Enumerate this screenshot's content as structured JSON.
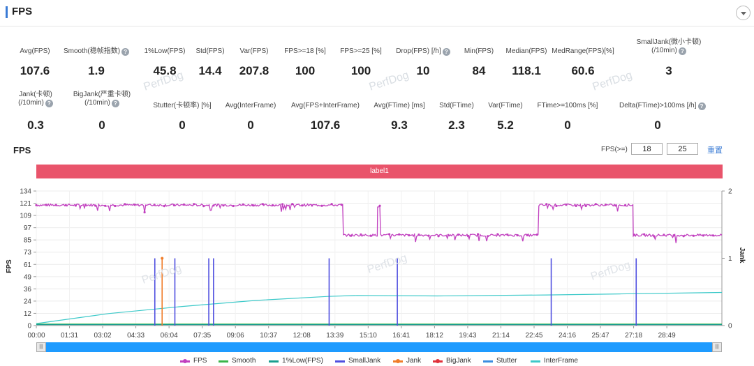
{
  "header": {
    "title": "FPS"
  },
  "stats": [
    {
      "label": "Avg(FPS)",
      "value": "107.6",
      "help": false
    },
    {
      "label": "Smooth(稳帧指数)",
      "value": "1.9",
      "help": true
    },
    {
      "label": "1%Low(FPS)",
      "value": "45.8",
      "help": false
    },
    {
      "label": "Std(FPS)",
      "value": "14.4",
      "help": false
    },
    {
      "label": "Var(FPS)",
      "value": "207.8",
      "help": false
    },
    {
      "label": "FPS>=18 [%]",
      "value": "100",
      "help": false
    },
    {
      "label": "FPS>=25 [%]",
      "value": "100",
      "help": false
    },
    {
      "label": "Drop(FPS) [/h]",
      "value": "10",
      "help": true
    },
    {
      "label": "Min(FPS)",
      "value": "84",
      "help": false
    },
    {
      "label": "Median(FPS)",
      "value": "118.1",
      "help": false
    },
    {
      "label": "MedRange(FPS)[%]",
      "value": "60.6",
      "help": false
    },
    {
      "label": "SmallJank(微小卡顿)\n(/10min)",
      "value": "3",
      "help": true
    },
    {
      "label": "Jank(卡顿)\n(/10min)",
      "value": "0.3",
      "help": true
    },
    {
      "label": "BigJank(严重卡顿)\n(/10min)",
      "value": "0",
      "help": true
    },
    {
      "label": "Stutter(卡顿率) [%]",
      "value": "0",
      "help": false
    },
    {
      "label": "Avg(InterFrame)",
      "value": "0",
      "help": false
    },
    {
      "label": "Avg(FPS+InterFrame)",
      "value": "107.6",
      "help": false
    },
    {
      "label": "Avg(FTime) [ms]",
      "value": "9.3",
      "help": false
    },
    {
      "label": "Std(FTime)",
      "value": "2.3",
      "help": false
    },
    {
      "label": "Var(FTime)",
      "value": "5.2",
      "help": false
    },
    {
      "label": "FTime>=100ms [%]",
      "value": "0",
      "help": false
    },
    {
      "label": "Delta(FTime)>100ms [/h]",
      "value": "0",
      "help": true
    }
  ],
  "watermark": "PerfDog",
  "chart_header": {
    "title": "FPS",
    "threshold_label": "FPS(>=)",
    "threshold_1": "18",
    "threshold_2": "25",
    "reset_label": "重置"
  },
  "label_band": "label1",
  "colors": {
    "FPS": "#c13fbf",
    "Smooth": "#3bb54a",
    "1%Low(FPS)": "#1a9e8f",
    "SmallJank": "#4f4fe0",
    "Jank": "#f07d2a",
    "BigJank": "#e0303a",
    "Stutter": "#3a8de0",
    "InterFrame": "#3cc9c9",
    "label_band": "#e9546b",
    "scrollbar": "#1e9bff"
  },
  "chart_data": {
    "type": "line",
    "ylabel_left": "FPS",
    "ylabel_right": "Jank",
    "y_left_ticks": [
      "0",
      "12",
      "24",
      "36",
      "49",
      "61",
      "73",
      "85",
      "97",
      "109",
      "121",
      "134"
    ],
    "y_left_lim": [
      0,
      134
    ],
    "y_right_ticks": [
      "0",
      "1",
      "2"
    ],
    "y_right_lim": [
      0,
      2
    ],
    "x_ticks": [
      "00:00",
      "01:31",
      "03:02",
      "04:33",
      "06:04",
      "07:35",
      "09:06",
      "10:37",
      "12:08",
      "13:39",
      "15:10",
      "16:41",
      "18:12",
      "19:43",
      "21:14",
      "22:45",
      "24:16",
      "25:47",
      "27:18",
      "28:49"
    ],
    "x_range_seconds": [
      0,
      1880
    ],
    "grid": true,
    "legend_position": "bottom",
    "series": [
      {
        "name": "FPS",
        "axis": "left",
        "segments": [
          {
            "t_start": 0,
            "t_end": 842,
            "value": 120
          },
          {
            "t_start": 842,
            "t_end": 936,
            "value": 90
          },
          {
            "t_start": 936,
            "t_end": 944,
            "value": 119
          },
          {
            "t_start": 944,
            "t_end": 1378,
            "value": 90
          },
          {
            "t_start": 1378,
            "t_end": 1637,
            "value": 120
          },
          {
            "t_start": 1637,
            "t_end": 1880,
            "value": 90
          }
        ]
      },
      {
        "name": "Smooth",
        "axis": "left",
        "points": [
          [
            0,
            1.5
          ],
          [
            1880,
            1.5
          ]
        ]
      },
      {
        "name": "1%Low(FPS)",
        "axis": "left",
        "points": [
          [
            0,
            1
          ],
          [
            1880,
            1
          ]
        ]
      },
      {
        "name": "InterFrame",
        "axis": "left",
        "points": [
          [
            0,
            2
          ],
          [
            200,
            12
          ],
          [
            400,
            19
          ],
          [
            600,
            25
          ],
          [
            800,
            29
          ],
          [
            880,
            30
          ],
          [
            1100,
            29.5
          ],
          [
            1400,
            30.5
          ],
          [
            1600,
            31.5
          ],
          [
            1880,
            33
          ]
        ]
      },
      {
        "name": "SmallJank",
        "axis": "right",
        "events": [
          [
            325,
            1
          ],
          [
            380,
            1
          ],
          [
            473,
            1
          ],
          [
            486,
            1
          ],
          [
            803,
            1
          ],
          [
            990,
            1
          ],
          [
            1412,
            1
          ],
          [
            1645,
            1
          ]
        ]
      },
      {
        "name": "Jank",
        "axis": "right",
        "events": [
          [
            345,
            1
          ]
        ]
      },
      {
        "name": "BigJank",
        "axis": "right",
        "events": []
      },
      {
        "name": "Stutter",
        "axis": "right",
        "events": []
      }
    ]
  },
  "legend": [
    "FPS",
    "Smooth",
    "1%Low(FPS)",
    "SmallJank",
    "Jank",
    "BigJank",
    "Stutter",
    "InterFrame"
  ]
}
